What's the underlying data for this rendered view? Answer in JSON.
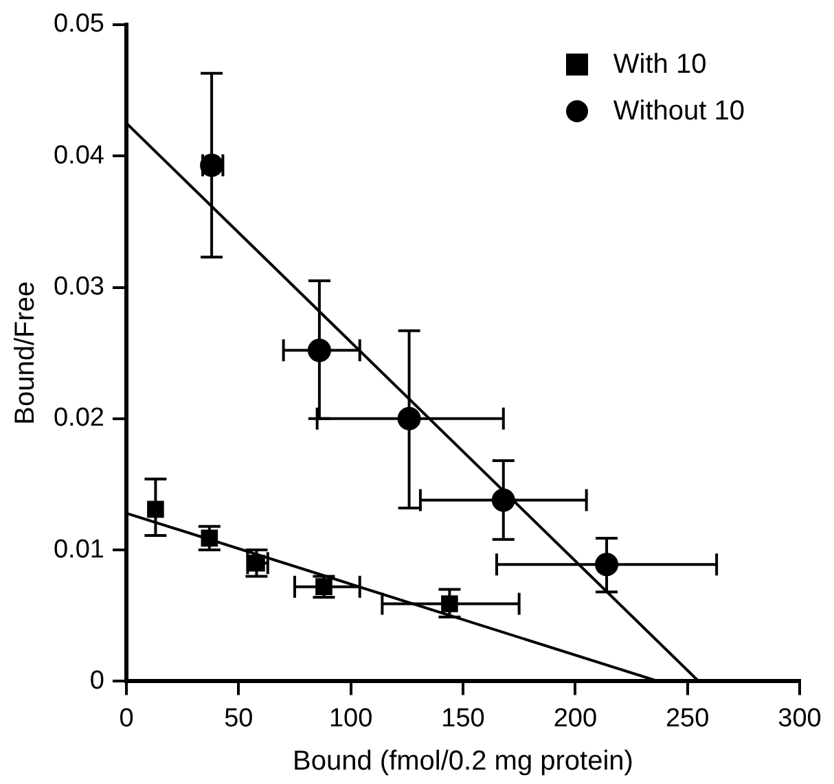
{
  "chart_data": {
    "type": "scatter",
    "xlabel": "Bound (fmol/0.2 mg protein)",
    "ylabel": "Bound/Free",
    "xlim": [
      0,
      300
    ],
    "ylim": [
      0,
      0.05
    ],
    "xticks": [
      0,
      50,
      100,
      150,
      200,
      250,
      300
    ],
    "yticks": [
      0,
      0.01,
      0.02,
      0.03,
      0.04,
      0.05
    ],
    "grid": false,
    "legend": "top right",
    "series": [
      {
        "name": "With 10",
        "type": "scatter",
        "marker": "square",
        "color": "#000000",
        "x": [
          13,
          37,
          58,
          88,
          144
        ],
        "values": [
          0.0131,
          0.0109,
          0.009,
          0.0072,
          0.0059
        ],
        "errors": [
          [
            0.0111,
            0.0154
          ],
          [
            0.01,
            0.0118
          ],
          [
            0.008,
            0.01
          ],
          [
            0.0064,
            0.008
          ],
          [
            0.0049,
            0.007
          ]
        ],
        "xerrors": [
          null,
          null,
          [
            54,
            63
          ],
          [
            75,
            104
          ],
          [
            114,
            175
          ]
        ]
      },
      {
        "name": "Without 10",
        "type": "scatter",
        "marker": "circle",
        "color": "#000000",
        "x": [
          38,
          86,
          126,
          168,
          214
        ],
        "values": [
          0.0393,
          0.0252,
          0.02,
          0.0138,
          0.0089
        ],
        "errors": [
          [
            0.0323,
            0.0463
          ],
          [
            0.02,
            0.0305
          ],
          [
            0.0132,
            0.0267
          ],
          [
            0.0108,
            0.0168
          ],
          [
            0.0068,
            0.0109
          ]
        ],
        "xerrors": [
          [
            34,
            43
          ],
          [
            70,
            104
          ],
          [
            85,
            168
          ],
          [
            131,
            205
          ],
          [
            165,
            263
          ]
        ]
      },
      {
        "type": "line",
        "color": "#000000",
        "x": [
          0,
          237
        ],
        "values": [
          0.0128,
          0
        ]
      },
      {
        "type": "line",
        "color": "#000000",
        "x": [
          0,
          255
        ],
        "values": [
          0.0425,
          0
        ]
      }
    ]
  }
}
